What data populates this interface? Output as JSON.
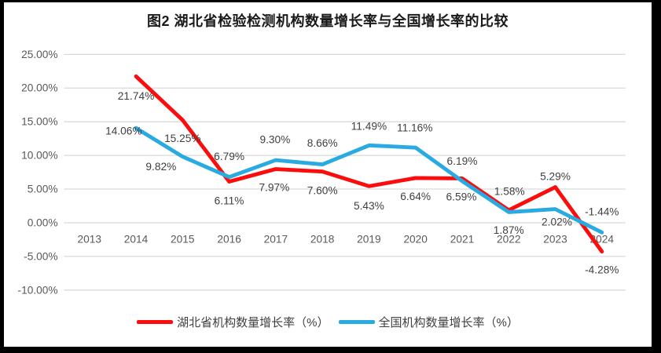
{
  "chart_data": {
    "type": "line",
    "title": "图2  湖北省检验检测机构数量增长率与全国增长率的比较",
    "categories": [
      "2013",
      "2014",
      "2015",
      "2016",
      "2017",
      "2018",
      "2019",
      "2020",
      "2021",
      "2022",
      "2023",
      "2024"
    ],
    "series": [
      {
        "name": "湖北省机构数量增长率（%）",
        "color": "#fb0d0d",
        "values": [
          null,
          21.74,
          15.25,
          6.11,
          7.97,
          7.6,
          5.43,
          6.64,
          6.59,
          1.87,
          5.29,
          -4.28
        ],
        "labels": [
          "",
          "21.74%",
          "15.25%",
          "6.11%",
          "7.97%",
          "7.60%",
          "5.43%",
          "6.64%",
          "6.59%",
          "1.87%",
          "5.29%",
          "-4.28%"
        ],
        "label_offsets": [
          [
            0,
            0
          ],
          [
            0,
            26
          ],
          [
            0,
            24
          ],
          [
            0,
            25
          ],
          [
            -2,
            24
          ],
          [
            0,
            25
          ],
          [
            0,
            26
          ],
          [
            0,
            24
          ],
          [
            -1,
            24
          ],
          [
            0,
            26
          ],
          [
            0,
            -14
          ],
          [
            0,
            24
          ]
        ]
      },
      {
        "name": "全国机构数量增长率（%）",
        "color": "#29abe2",
        "values": [
          null,
          14.06,
          9.82,
          6.79,
          9.3,
          8.66,
          11.49,
          11.16,
          6.19,
          1.58,
          2.02,
          -1.44
        ],
        "labels": [
          "",
          "14.06%",
          "9.82%",
          "6.79%",
          "9.30%",
          "8.66%",
          "11.49%",
          "11.16%",
          "6.19%",
          "1.58%",
          "2.02%",
          "-1.44%"
        ],
        "label_offsets": [
          [
            0,
            0
          ],
          [
            -16,
            4
          ],
          [
            -28,
            13
          ],
          [
            0,
            -27
          ],
          [
            -1,
            -27
          ],
          [
            0,
            -28
          ],
          [
            0,
            -25
          ],
          [
            -1,
            -26
          ],
          [
            0,
            -26
          ],
          [
            1,
            -27
          ],
          [
            2,
            17
          ],
          [
            0,
            -27
          ]
        ]
      }
    ],
    "ylim": [
      -10,
      25
    ],
    "ytick_step": 5,
    "yticks": [
      "25.00%",
      "20.00%",
      "15.00%",
      "10.00%",
      "5.00%",
      "0.00%",
      "-5.00%",
      "-10.00%"
    ],
    "grid": true,
    "legend_position": "bottom",
    "colors": {
      "grid": "#d9d9d9",
      "tick_text": "#595959",
      "data_label_text": "#3f3f3f",
      "background": "#ffffff",
      "frame": "#000000"
    }
  }
}
